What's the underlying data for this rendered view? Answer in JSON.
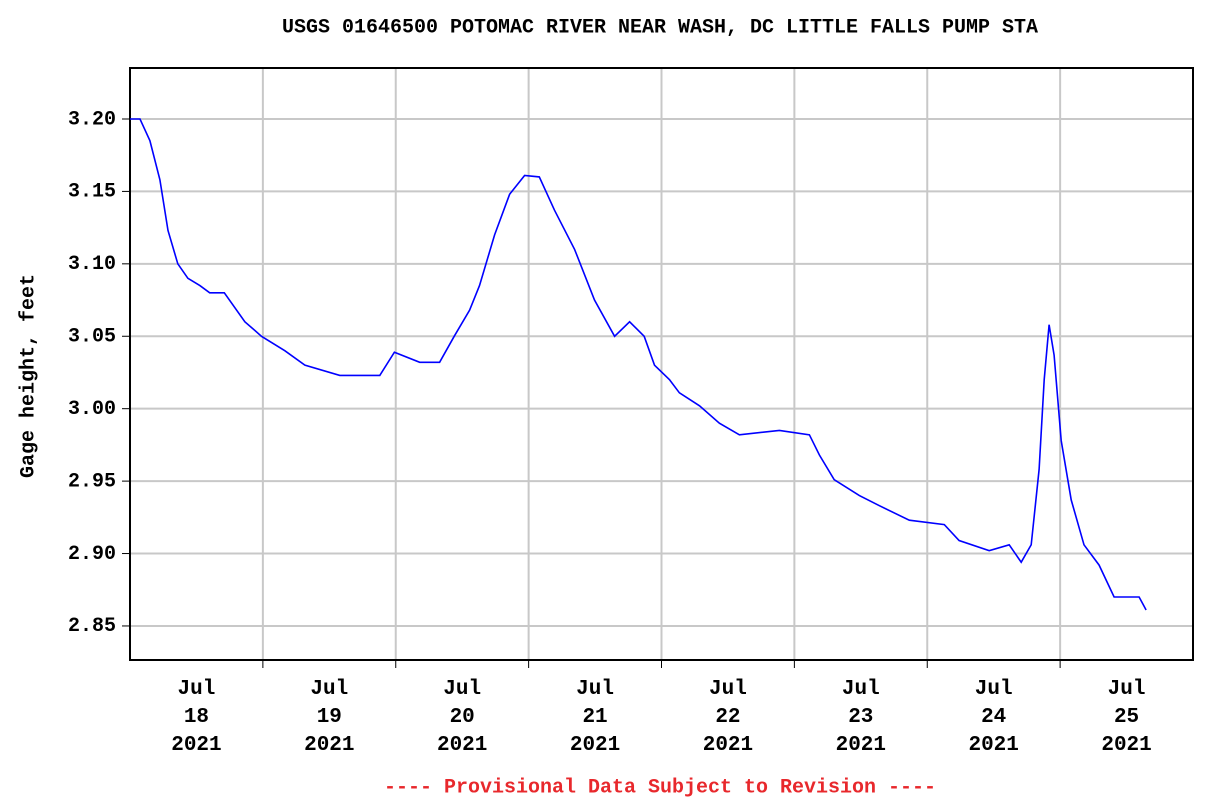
{
  "chart_data": {
    "type": "line",
    "title": "USGS 01646500 POTOMAC RIVER NEAR WASH, DC LITTLE FALLS PUMP STA",
    "y_label": "Gage height, feet",
    "footnote": "---- Provisional Data Subject to Revision ----",
    "xlim": [
      0,
      8
    ],
    "xticks": [
      {
        "value": 0.5,
        "label": "Jul\n18\n2021"
      },
      {
        "value": 1.5,
        "label": "Jul\n19\n2021"
      },
      {
        "value": 2.5,
        "label": "Jul\n20\n2021"
      },
      {
        "value": 3.5,
        "label": "Jul\n21\n2021"
      },
      {
        "value": 4.5,
        "label": "Jul\n22\n2021"
      },
      {
        "value": 5.5,
        "label": "Jul\n23\n2021"
      },
      {
        "value": 6.5,
        "label": "Jul\n24\n2021"
      },
      {
        "value": 7.5,
        "label": "Jul\n25\n2021"
      }
    ],
    "xgrid": [
      1,
      2,
      3,
      4,
      5,
      6,
      7
    ],
    "ylim": [
      2.8265,
      3.2352
    ],
    "yticks": [
      {
        "value": 2.85,
        "label": "2.85"
      },
      {
        "value": 2.9,
        "label": "2.90"
      },
      2.95,
      {
        "value": 3.0,
        "label": "3.00"
      },
      3.05,
      {
        "value": 3.1,
        "label": "3.10"
      },
      3.15,
      {
        "value": 3.2,
        "label": "3.20"
      }
    ],
    "grid": true,
    "color": "#0000ff",
    "x": [
      0,
      0.075,
      0.15,
      0.225,
      0.286,
      0.36,
      0.436,
      0.526,
      0.6,
      0.71,
      0.865,
      0.99,
      1.165,
      1.316,
      1.579,
      1.88,
      1.99,
      2.18,
      2.33,
      2.44,
      2.556,
      2.63,
      2.744,
      2.857,
      2.97,
      3.08,
      3.195,
      3.346,
      3.496,
      3.647,
      3.76,
      3.87,
      3.947,
      4.06,
      4.135,
      4.286,
      4.436,
      4.586,
      4.887,
      5.113,
      5.188,
      5.3,
      5.489,
      5.64,
      5.865,
      6.128,
      6.24,
      6.466,
      6.617,
      6.707,
      6.782,
      6.842,
      6.88,
      6.917,
      6.955,
      7.008,
      7.083,
      7.18,
      7.293,
      7.406,
      7.594,
      7.647
    ],
    "values": [
      3.2,
      3.2,
      3.185,
      3.158,
      3.123,
      3.1,
      3.09,
      3.085,
      3.08,
      3.08,
      3.06,
      3.05,
      3.04,
      3.03,
      3.023,
      3.023,
      3.039,
      3.032,
      3.032,
      3.05,
      3.068,
      3.085,
      3.12,
      3.148,
      3.161,
      3.16,
      3.137,
      3.11,
      3.075,
      3.05,
      3.06,
      3.05,
      3.03,
      3.02,
      3.011,
      3.002,
      2.99,
      2.982,
      2.985,
      2.982,
      2.968,
      2.951,
      2.94,
      2.933,
      2.923,
      2.92,
      2.909,
      2.902,
      2.906,
      2.894,
      2.906,
      2.958,
      3.02,
      3.058,
      3.037,
      2.978,
      2.937,
      2.906,
      2.892,
      2.87,
      2.87,
      2.861
    ]
  }
}
